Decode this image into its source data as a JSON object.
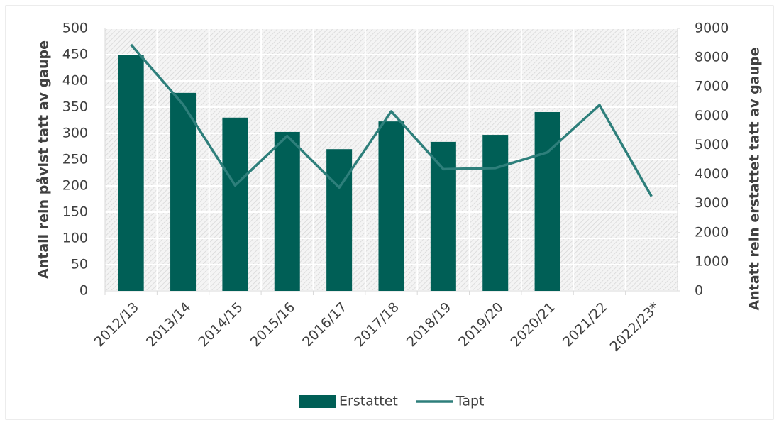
{
  "chart_data": {
    "type": "bar_line",
    "categories": [
      "2012/13",
      "2013/14",
      "2014/15",
      "2015/16",
      "2016/17",
      "2017/18",
      "2018/19",
      "2019/20",
      "2020/21",
      "2021/22",
      "2022/23*"
    ],
    "series": [
      {
        "name": "Erstattet",
        "type": "bar",
        "axis": "y2",
        "color": "#005f56",
        "values": [
          8080,
          6790,
          5940,
          5450,
          4860,
          5810,
          5110,
          5350,
          6130,
          null,
          null
        ]
      },
      {
        "name": "Tapt",
        "type": "line",
        "axis": "y",
        "color": "#2e7f7b",
        "values": [
          469,
          355,
          201,
          295,
          197,
          342,
          232,
          234,
          264,
          354,
          180
        ]
      }
    ],
    "ylabel": "Antall rein påvist tatt av gaupe",
    "y2label": "Antatt rein erstattet tatt av gaupe",
    "ylim": [
      0,
      500
    ],
    "yticks": [
      0,
      50,
      100,
      150,
      200,
      250,
      300,
      350,
      400,
      450,
      500
    ],
    "y2lim": [
      0,
      9000
    ],
    "y2ticks": [
      0,
      1000,
      2000,
      3000,
      4000,
      5000,
      6000,
      7000,
      8000,
      9000
    ],
    "grid": true,
    "legend": "bottom"
  }
}
